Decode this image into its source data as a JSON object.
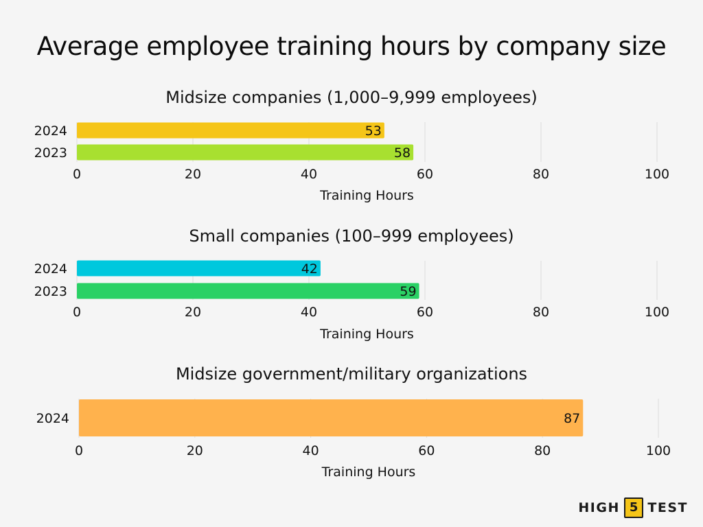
{
  "title": "Average employee training hours by company size",
  "brand": {
    "left": "HIGH",
    "mid": "5",
    "right": "TEST"
  },
  "chart_data": [
    {
      "type": "bar",
      "orientation": "horizontal",
      "title": "Midsize companies (1,000–9,999 employees)",
      "xlabel": "Training Hours",
      "xlim": [
        0,
        100
      ],
      "xticks": [
        0,
        20,
        40,
        60,
        80,
        100
      ],
      "categories": [
        "2024",
        "2023"
      ],
      "values": [
        53,
        58
      ],
      "colors": [
        "#f5c518",
        "#a8e030"
      ],
      "grid": true
    },
    {
      "type": "bar",
      "orientation": "horizontal",
      "title": "Small companies (100–999 employees)",
      "xlabel": "Training Hours",
      "xlim": [
        0,
        100
      ],
      "xticks": [
        0,
        20,
        40,
        60,
        80,
        100
      ],
      "categories": [
        "2024",
        "2023"
      ],
      "values": [
        42,
        59
      ],
      "colors": [
        "#00c8dd",
        "#2ad165"
      ],
      "grid": true
    },
    {
      "type": "bar",
      "orientation": "horizontal",
      "title": "Midsize government/military organizations",
      "xlabel": "Training Hours",
      "xlim": [
        0,
        100
      ],
      "xticks": [
        0,
        20,
        40,
        60,
        80,
        100
      ],
      "categories": [
        "2024"
      ],
      "values": [
        87
      ],
      "colors": [
        "#ffb24d"
      ],
      "grid": true
    }
  ]
}
